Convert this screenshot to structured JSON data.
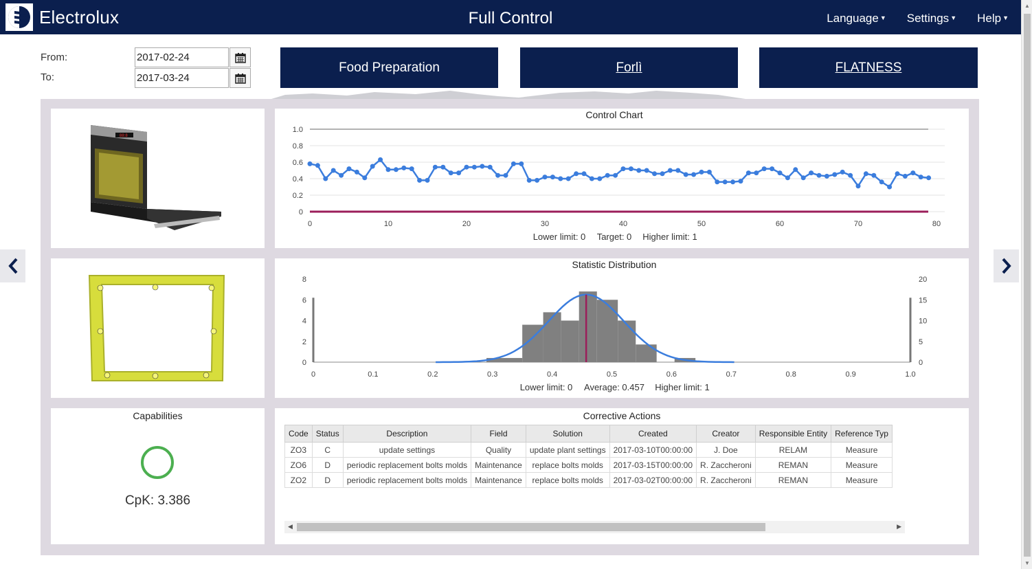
{
  "header": {
    "brand": "Electrolux",
    "title": "Full Control",
    "nav": [
      "Language",
      "Settings",
      "Help"
    ]
  },
  "filters": {
    "from_label": "From:",
    "from_value": "2017-02-24",
    "to_label": "To:",
    "to_value": "2017-03-24"
  },
  "tiles": [
    "Food Preparation",
    "Forlì",
    "FLATNESS"
  ],
  "control_chart": {
    "title": "Control Chart",
    "footer": [
      "Lower limit: 0",
      "Target: 0",
      "Higher limit: 1"
    ]
  },
  "distribution": {
    "title": "Statistic Distribution",
    "footer": [
      "Lower limit: 0",
      "Average: 0.457",
      "Higher limit: 1"
    ]
  },
  "capabilities": {
    "title": "Capabilities",
    "cpk": "CpK: 3.386",
    "status_color": "#4caf50"
  },
  "corrective_actions": {
    "title": "Corrective Actions",
    "columns": [
      "Code",
      "Status",
      "Description",
      "Field",
      "Solution",
      "Created",
      "Creator",
      "Responsible Entity",
      "Reference Typ"
    ],
    "rows": [
      [
        "ZO3",
        "C",
        "update settings",
        "Quality",
        "update plant settings",
        "2017-03-10T00:00:00",
        "J. Doe",
        "RELAM",
        "Measure"
      ],
      [
        "ZO6",
        "D",
        "periodic replacement bolts molds",
        "Maintenance",
        "replace bolts molds",
        "2017-03-15T00:00:00",
        "R. Zaccheroni",
        "REMAN",
        "Measure"
      ],
      [
        "ZO2",
        "D",
        "periodic replacement bolts molds",
        "Maintenance",
        "replace bolts molds",
        "2017-03-02T00:00:00",
        "R. Zaccheroni",
        "REMAN",
        "Measure"
      ]
    ]
  },
  "colors": {
    "navy": "#0b1f4e",
    "series": "#3b7ddd",
    "limit": "#9b1e5a",
    "bars": "#808080"
  },
  "chart_data": [
    {
      "type": "line",
      "title": "Control Chart",
      "xlim": [
        0,
        80
      ],
      "ylim": [
        0,
        1
      ],
      "x_ticks": [
        0,
        10,
        20,
        30,
        40,
        50,
        60,
        70,
        80
      ],
      "y_ticks": [
        "0",
        "0.2",
        "0.4",
        "0.6",
        "0.8",
        "1.0"
      ],
      "grid": true,
      "series": [
        {
          "values": [
            0.58,
            0.56,
            0.4,
            0.5,
            0.44,
            0.52,
            0.48,
            0.41,
            0.55,
            0.63,
            0.51,
            0.51,
            0.53,
            0.52,
            0.38,
            0.38,
            0.54,
            0.54,
            0.47,
            0.47,
            0.54,
            0.54,
            0.55,
            0.54,
            0.44,
            0.44,
            0.58,
            0.58,
            0.38,
            0.38,
            0.42,
            0.42,
            0.4,
            0.4,
            0.46,
            0.46,
            0.4,
            0.4,
            0.44,
            0.44,
            0.52,
            0.52,
            0.5,
            0.5,
            0.46,
            0.46,
            0.5,
            0.5,
            0.45,
            0.45,
            0.48,
            0.48,
            0.36,
            0.36,
            0.36,
            0.37,
            0.47,
            0.47,
            0.52,
            0.52,
            0.47,
            0.41,
            0.51,
            0.41,
            0.47,
            0.44,
            0.43,
            0.45,
            0.48,
            0.44,
            0.31,
            0.46,
            0.44,
            0.36,
            0.3,
            0.46,
            0.43,
            0.47,
            0.42,
            0.41
          ]
        }
      ],
      "reference_lines": [
        {
          "name": "Higher limit",
          "value": 1
        },
        {
          "name": "Lower limit",
          "value": 0
        }
      ]
    },
    {
      "type": "bar",
      "title": "Statistic Distribution",
      "xlim": [
        0,
        1
      ],
      "x_ticks": [
        "0",
        "0.1",
        "0.2",
        "0.3",
        "0.4",
        "0.5",
        "0.6",
        "0.7",
        "0.8",
        "0.9",
        "1.0"
      ],
      "y_left_ticks": [
        "0",
        "2",
        "4",
        "6",
        "8"
      ],
      "y_left_lim": [
        0,
        8
      ],
      "y_right_ticks": [
        "0",
        "5",
        "10",
        "15",
        "20"
      ],
      "y_right_lim": [
        0,
        20
      ],
      "bins": [
        {
          "x0": 0.29,
          "x1": 0.35,
          "value": 0.4
        },
        {
          "x0": 0.35,
          "x1": 0.385,
          "value": 3.6
        },
        {
          "x0": 0.385,
          "x1": 0.415,
          "value": 4.8
        },
        {
          "x0": 0.415,
          "x1": 0.445,
          "value": 4.0
        },
        {
          "x0": 0.445,
          "x1": 0.475,
          "value": 6.8
        },
        {
          "x0": 0.475,
          "x1": 0.51,
          "value": 6.0
        },
        {
          "x0": 0.51,
          "x1": 0.54,
          "value": 4.0
        },
        {
          "x0": 0.54,
          "x1": 0.575,
          "value": 1.7
        },
        {
          "x0": 0.605,
          "x1": 0.64,
          "value": 0.4
        }
      ],
      "curve": {
        "mean": 0.457,
        "sd": 0.063,
        "peak": 6.5,
        "x_range": [
          0.205,
          0.705
        ]
      },
      "average": 0.457
    }
  ]
}
